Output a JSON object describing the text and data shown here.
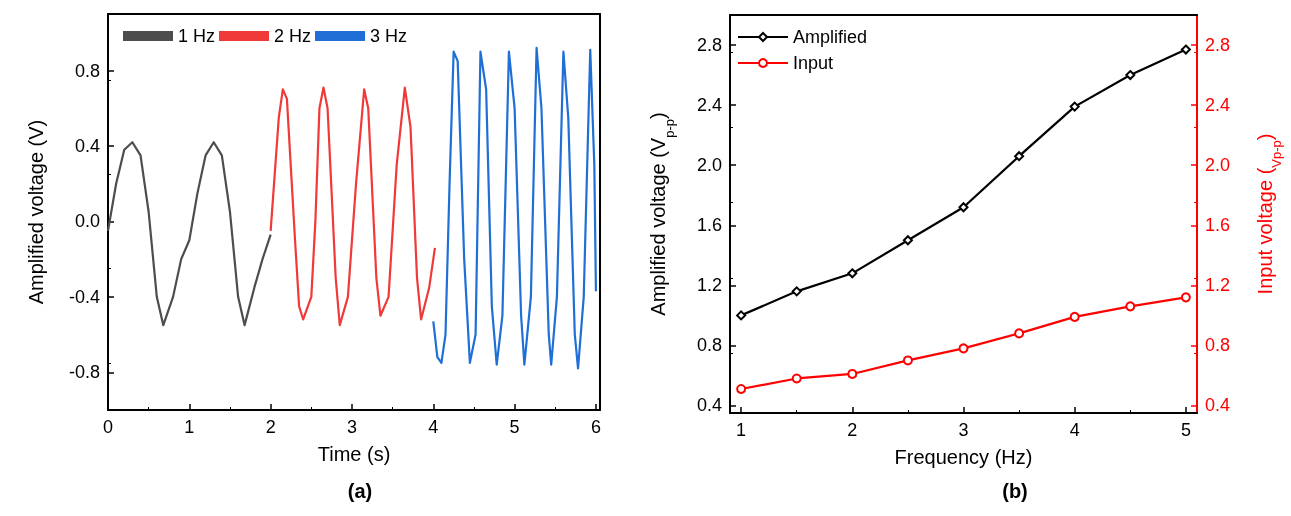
{
  "chart_data": [
    {
      "type": "line",
      "title": "(a)",
      "xlabel": "Time (s)",
      "ylabel": "Amplified voltage (V)",
      "xlim": [
        0,
        6.05
      ],
      "ylim": [
        -1.0,
        1.1
      ],
      "xticks": [
        0,
        1,
        2,
        3,
        4,
        5,
        6
      ],
      "yticks": [
        -0.8,
        -0.4,
        {
          "value": 0,
          "label": "0.0"
        },
        0.4,
        0.8
      ],
      "legend": "top left",
      "marker": "none",
      "line_style": "solid",
      "grid": false,
      "series": [
        {
          "name": "1 Hz",
          "color": "#4d4d4d",
          "x": [
            0,
            0.1,
            0.2,
            0.3,
            0.4,
            0.5,
            0.6,
            0.68,
            0.8,
            0.9,
            1.0,
            1.1,
            1.2,
            1.3,
            1.4,
            1.5,
            1.6,
            1.68,
            1.8,
            1.9,
            2.0
          ],
          "values": [
            -0.05,
            0.2,
            0.38,
            0.42,
            0.35,
            0.05,
            -0.4,
            -0.55,
            -0.4,
            -0.2,
            -0.1,
            0.15,
            0.35,
            0.42,
            0.35,
            0.05,
            -0.4,
            -0.55,
            -0.35,
            -0.2,
            -0.07
          ]
        },
        {
          "name": "2 Hz",
          "color": "#f03a3a",
          "x": [
            2.0,
            2.1,
            2.15,
            2.2,
            2.3,
            2.35,
            2.4,
            2.5,
            2.55,
            2.6,
            2.65,
            2.7,
            2.8,
            2.85,
            2.95,
            3.05,
            3.15,
            3.2,
            3.3,
            3.35,
            3.45,
            3.55,
            3.65,
            3.72,
            3.8,
            3.85,
            3.95,
            4.02
          ],
          "values": [
            -0.05,
            0.55,
            0.7,
            0.65,
            -0.1,
            -0.45,
            -0.52,
            -0.4,
            0.0,
            0.6,
            0.71,
            0.6,
            -0.3,
            -0.55,
            -0.4,
            0.2,
            0.7,
            0.6,
            -0.3,
            -0.5,
            -0.4,
            0.3,
            0.71,
            0.5,
            -0.3,
            -0.52,
            -0.35,
            -0.14
          ]
        },
        {
          "name": "3 Hz",
          "color": "#1f6fd6",
          "x": [
            4.0,
            4.05,
            4.1,
            4.15,
            4.2,
            4.25,
            4.3,
            4.38,
            4.45,
            4.52,
            4.58,
            4.65,
            4.72,
            4.78,
            4.85,
            4.93,
            5.0,
            5.08,
            5.12,
            5.2,
            5.27,
            5.33,
            5.42,
            5.45,
            5.52,
            5.6,
            5.66,
            5.74,
            5.78,
            5.85,
            5.93,
            5.98,
            6.0
          ],
          "values": [
            -0.53,
            -0.72,
            -0.75,
            -0.6,
            0.2,
            0.9,
            0.85,
            -0.2,
            -0.75,
            -0.6,
            0.9,
            0.7,
            -0.45,
            -0.76,
            -0.5,
            0.9,
            0.6,
            -0.5,
            -0.76,
            -0.4,
            0.92,
            0.6,
            -0.6,
            -0.76,
            -0.4,
            0.9,
            0.55,
            -0.6,
            -0.78,
            -0.4,
            0.91,
            0.3,
            -0.37
          ]
        }
      ]
    },
    {
      "type": "line",
      "title": "(b)",
      "xlabel": "Frequency (Hz)",
      "ylabel": "Amplified voltage (V$_{p-p}$)",
      "y2label": "Input voltage ($_{Vp-p}$)",
      "xlim": [
        0.9,
        5.1
      ],
      "ylim": [
        0.35,
        3.0
      ],
      "y2lim": [
        0.35,
        3.0
      ],
      "xticks": [
        1,
        2,
        3,
        4,
        5
      ],
      "yticks": [
        0.4,
        0.8,
        1.2,
        1.6,
        {
          "value": 2,
          "label": "2.0"
        },
        2.4,
        2.8
      ],
      "y2ticks": [
        0.4,
        0.8,
        1.2,
        1.6,
        {
          "value": 2,
          "label": "2.0"
        },
        2.4,
        2.8
      ],
      "legend": "top left",
      "line_style": "solid",
      "grid": false,
      "x": [
        1,
        1.5,
        2,
        2.5,
        3,
        3.5,
        4,
        4.5,
        5
      ],
      "series": [
        {
          "name": "Amplified",
          "color": "#000000",
          "marker": "diamond",
          "values": [
            1.0,
            1.16,
            1.28,
            1.5,
            1.72,
            2.06,
            2.39,
            2.6,
            2.77
          ]
        },
        {
          "name": "Input",
          "color": "#ff0000",
          "marker": "circle",
          "axis": "y2",
          "values": [
            0.51,
            0.58,
            0.61,
            0.7,
            0.78,
            0.88,
            0.99,
            1.06,
            1.12
          ]
        }
      ]
    }
  ]
}
